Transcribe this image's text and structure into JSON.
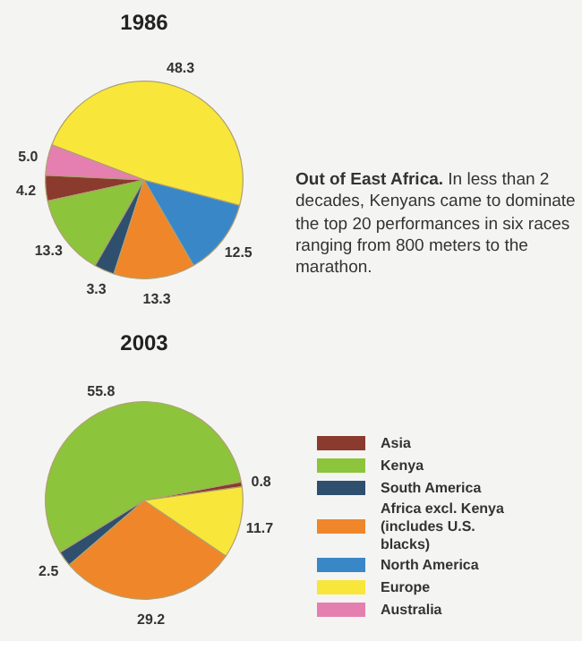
{
  "chart_data": [
    {
      "type": "pie",
      "title": "1986",
      "categories": [
        "Asia",
        "Kenya",
        "South America",
        "Africa excl. Kenya (includes U.S. blacks)",
        "North America",
        "Europe",
        "Australia"
      ],
      "values": [
        4.2,
        13.3,
        3.3,
        13.3,
        12.5,
        48.3,
        5.0
      ],
      "colors": [
        "#8b3a2e",
        "#8cc43c",
        "#2f4f6f",
        "#f0862a",
        "#3a87c8",
        "#f8e73a",
        "#e57fb0"
      ],
      "value_labels": [
        "4.2",
        "13.3",
        "3.3",
        "13.3",
        "12.5",
        "48.3",
        "5.0"
      ],
      "annotations": [
        "Out of East Africa. In less than 2 decades, Kenyans came to dominate the top 20 performances in six races ranging from 800 meters to the marathon."
      ],
      "legend": "right"
    },
    {
      "type": "pie",
      "title": "2003",
      "categories": [
        null,
        null,
        null,
        null,
        null,
        null,
        null
      ],
      "values": [
        0.8,
        55.8,
        2.5,
        29.2,
        0,
        11.7,
        0
      ],
      "colors": [
        "#8b3a2e",
        "#8cc43c",
        "#2f4f6f",
        "#f0862a",
        "#3a87c8",
        "#f8e73a",
        "#e57fb0"
      ],
      "value_labels": [
        "0.8",
        "55.8",
        "2.5",
        "29.2",
        null,
        "11.7",
        null
      ]
    }
  ]
}
